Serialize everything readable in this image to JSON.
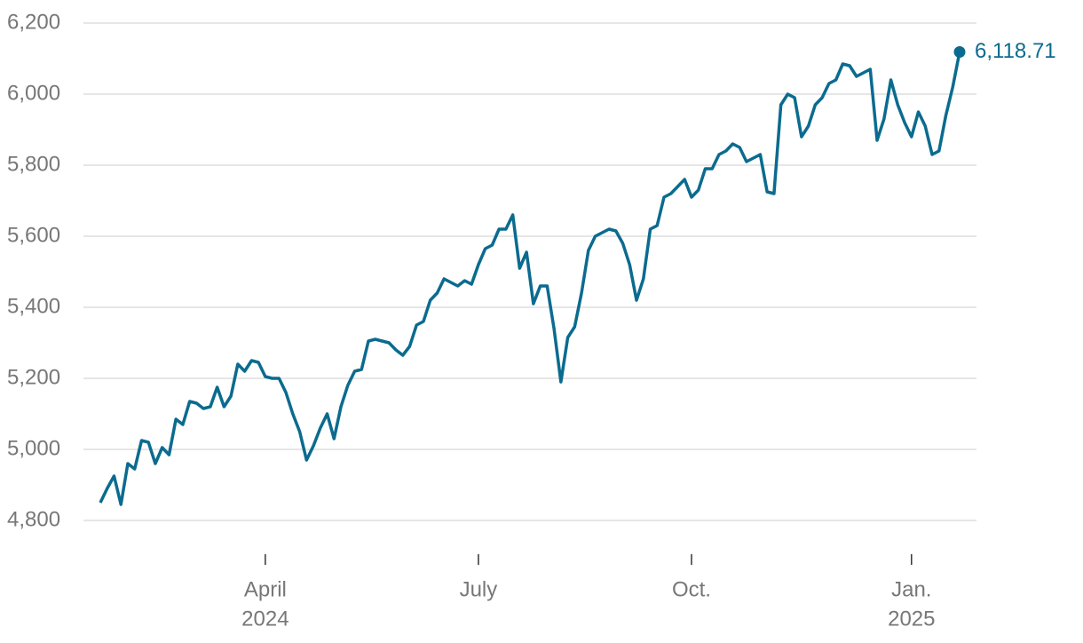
{
  "chart_data": {
    "type": "line",
    "color": "#0b6b8f",
    "grid": true,
    "values": [
      4850,
      4890,
      4925,
      4845,
      4960,
      4945,
      5025,
      5020,
      4960,
      5005,
      4985,
      5085,
      5070,
      5135,
      5130,
      5115,
      5120,
      5175,
      5120,
      5150,
      5240,
      5220,
      5250,
      5245,
      5205,
      5200,
      5200,
      5160,
      5100,
      5050,
      4970,
      5010,
      5060,
      5100,
      5030,
      5120,
      5180,
      5220,
      5225,
      5305,
      5310,
      5305,
      5300,
      5280,
      5265,
      5290,
      5350,
      5360,
      5420,
      5440,
      5480,
      5470,
      5460,
      5475,
      5465,
      5520,
      5565,
      5575,
      5620,
      5620,
      5660,
      5510,
      5555,
      5410,
      5460,
      5460,
      5340,
      5190,
      5315,
      5345,
      5440,
      5560,
      5600,
      5610,
      5620,
      5615,
      5580,
      5520,
      5420,
      5480,
      5620,
      5630,
      5710,
      5720,
      5740,
      5760,
      5710,
      5730,
      5790,
      5790,
      5830,
      5840,
      5860,
      5850,
      5810,
      5820,
      5830,
      5725,
      5720,
      5970,
      6000,
      5990,
      5880,
      5910,
      5970,
      5990,
      6030,
      6040,
      6085,
      6080,
      6050,
      6060,
      6070,
      5870,
      5930,
      6040,
      5970,
      5920,
      5880,
      5950,
      5910,
      5830,
      5840,
      5940,
      6020,
      6118.71
    ],
    "value_labels": [
      null,
      null,
      null,
      null,
      null,
      null,
      null,
      null,
      null,
      null,
      null,
      null,
      null,
      null,
      null,
      null,
      null,
      null,
      null,
      null,
      null,
      null,
      null,
      null,
      null,
      null,
      null,
      null,
      null,
      null,
      null,
      null,
      null,
      null,
      null,
      null,
      null,
      null,
      null,
      null,
      null,
      null,
      null,
      null,
      null,
      null,
      null,
      null,
      null,
      null,
      null,
      null,
      null,
      null,
      null,
      null,
      null,
      null,
      null,
      null,
      null,
      null,
      null,
      null,
      null,
      null,
      null,
      null,
      null,
      null,
      null,
      null,
      null,
      null,
      null,
      null,
      null,
      null,
      null,
      null,
      null,
      null,
      null,
      null,
      null,
      null,
      null,
      null,
      null,
      null,
      null,
      null,
      null,
      null,
      null,
      null,
      null,
      null,
      null,
      null,
      null,
      null,
      null,
      null,
      null,
      null,
      null,
      null,
      null,
      null,
      null,
      null,
      null,
      null,
      null,
      null,
      null,
      null,
      null,
      null,
      null,
      null,
      null,
      null,
      null,
      "6,118.71"
    ],
    "ylim": [
      4800,
      6200
    ],
    "yticks": [
      {
        "value": 4800,
        "label": "4,800"
      },
      {
        "value": 5000,
        "label": "5,000"
      },
      {
        "value": 5200,
        "label": "5,200"
      },
      {
        "value": 5400,
        "label": "5,400"
      },
      {
        "value": 5600,
        "label": "5,600"
      },
      {
        "value": 5800,
        "label": "5,800"
      },
      {
        "value": 6000,
        "label": "6,000"
      },
      {
        "value": 6200,
        "label": "6,200"
      }
    ],
    "xticks": [
      {
        "value": 24,
        "label": "April",
        "sublabel": "2024"
      },
      {
        "value": 55,
        "label": "July"
      },
      {
        "value": 86,
        "label": "Oct."
      },
      {
        "value": 118,
        "label": "Jan.",
        "sublabel": "2025"
      }
    ]
  }
}
